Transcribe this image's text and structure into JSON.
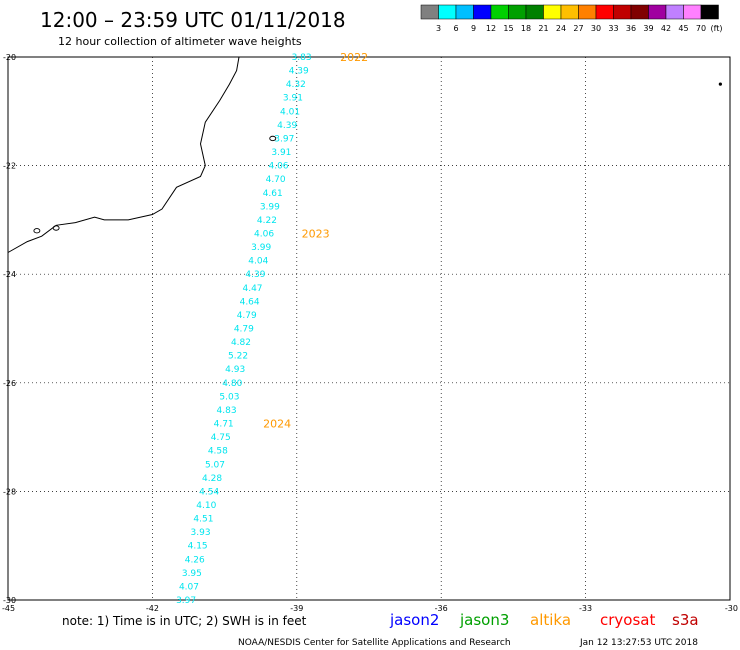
{
  "title": "12:00 – 23:59 UTC 01/11/2018",
  "subtitle": "12 hour collection of altimeter wave heights",
  "legend": {
    "colors": [
      "#808080",
      "#00ffff",
      "#00bfff",
      "#0000ff",
      "#00d000",
      "#00a000",
      "#008000",
      "#ffff00",
      "#ffbf00",
      "#ff8000",
      "#ff0000",
      "#c00000",
      "#800000",
      "#a000a0",
      "#c080ff",
      "#ff80ff",
      "#000000"
    ],
    "labels": [
      "3",
      "6",
      "9",
      "12",
      "15",
      "18",
      "21",
      "24",
      "27",
      "30",
      "33",
      "36",
      "39",
      "42",
      "45",
      "70",
      "(ft)"
    ]
  },
  "note": "note:  1) Time is in UTC;  2) SWH is in feet",
  "satellites": [
    {
      "name": "jason2",
      "color": "#0000ff"
    },
    {
      "name": "jason3",
      "color": "#00a000"
    },
    {
      "name": "altika",
      "color": "#ff9900"
    },
    {
      "name": "cryosat",
      "color": "#ff0000"
    },
    {
      "name": "s3a",
      "color": "#c00000"
    }
  ],
  "footer": {
    "left": "NOAA/NESDIS Center for Satellite Applications and Research",
    "right": "Jan 12 13:27:53 UTC 2018"
  },
  "chart_data": {
    "type": "scatter",
    "xlim": [
      -45,
      -30
    ],
    "ylim": [
      -30,
      -20
    ],
    "xticks": [
      -45,
      -42,
      -39,
      -36,
      -33,
      -30
    ],
    "yticks": [
      -20,
      -22,
      -24,
      -26,
      -28,
      -30
    ],
    "grid": true,
    "unit": "ft",
    "track_points": [
      {
        "lon": -38.9,
        "lat": -20.0,
        "value": "3.83"
      },
      {
        "lon": -38.96,
        "lat": -20.25,
        "value": "4.39"
      },
      {
        "lon": -39.02,
        "lat": -20.5,
        "value": "4.32"
      },
      {
        "lon": -39.08,
        "lat": -20.75,
        "value": "3.91"
      },
      {
        "lon": -39.14,
        "lat": -21.0,
        "value": "4.01"
      },
      {
        "lon": -39.2,
        "lat": -21.25,
        "value": "4.39"
      },
      {
        "lon": -39.26,
        "lat": -21.5,
        "value": "3.97"
      },
      {
        "lon": -39.32,
        "lat": -21.75,
        "value": "3.91"
      },
      {
        "lon": -39.38,
        "lat": -22.0,
        "value": "4.06"
      },
      {
        "lon": -39.44,
        "lat": -22.25,
        "value": "4.70"
      },
      {
        "lon": -39.5,
        "lat": -22.5,
        "value": "4.61"
      },
      {
        "lon": -39.56,
        "lat": -22.75,
        "value": "3.99"
      },
      {
        "lon": -39.62,
        "lat": -23.0,
        "value": "4.22"
      },
      {
        "lon": -39.68,
        "lat": -23.25,
        "value": "4.06"
      },
      {
        "lon": -39.74,
        "lat": -23.5,
        "value": "3.99"
      },
      {
        "lon": -39.8,
        "lat": -23.75,
        "value": "4.04"
      },
      {
        "lon": -39.86,
        "lat": -24.0,
        "value": "4.39"
      },
      {
        "lon": -39.92,
        "lat": -24.25,
        "value": "4.47"
      },
      {
        "lon": -39.98,
        "lat": -24.5,
        "value": "4.64"
      },
      {
        "lon": -40.04,
        "lat": -24.75,
        "value": "4.79"
      },
      {
        "lon": -40.1,
        "lat": -25.0,
        "value": "4.79"
      },
      {
        "lon": -40.16,
        "lat": -25.25,
        "value": "4.82"
      },
      {
        "lon": -40.22,
        "lat": -25.5,
        "value": "5.22"
      },
      {
        "lon": -40.28,
        "lat": -25.75,
        "value": "4.93"
      },
      {
        "lon": -40.34,
        "lat": -26.0,
        "value": "4.80"
      },
      {
        "lon": -40.4,
        "lat": -26.25,
        "value": "5.03"
      },
      {
        "lon": -40.46,
        "lat": -26.5,
        "value": "4.83"
      },
      {
        "lon": -40.52,
        "lat": -26.75,
        "value": "4.71"
      },
      {
        "lon": -40.58,
        "lat": -27.0,
        "value": "4.75"
      },
      {
        "lon": -40.64,
        "lat": -27.25,
        "value": "4.58"
      },
      {
        "lon": -40.7,
        "lat": -27.5,
        "value": "5.07"
      },
      {
        "lon": -40.76,
        "lat": -27.75,
        "value": "4.28"
      },
      {
        "lon": -40.82,
        "lat": -28.0,
        "value": "4.54"
      },
      {
        "lon": -40.88,
        "lat": -28.25,
        "value": "4.10"
      },
      {
        "lon": -40.94,
        "lat": -28.5,
        "value": "4.51"
      },
      {
        "lon": -41.0,
        "lat": -28.75,
        "value": "3.93"
      },
      {
        "lon": -41.06,
        "lat": -29.0,
        "value": "4.15"
      },
      {
        "lon": -41.12,
        "lat": -29.25,
        "value": "4.26"
      },
      {
        "lon": -41.18,
        "lat": -29.5,
        "value": "3.95"
      },
      {
        "lon": -41.24,
        "lat": -29.75,
        "value": "4.07"
      },
      {
        "lon": -41.3,
        "lat": -30.0,
        "value": "3.97"
      }
    ],
    "time_labels": [
      {
        "text": "2022",
        "lon": -38.1,
        "lat": -20.0
      },
      {
        "text": "2023",
        "lon": -38.9,
        "lat": -23.25
      },
      {
        "text": "2024",
        "lon": -39.7,
        "lat": -26.75
      }
    ],
    "coastline": [
      [
        -40.2,
        -20.0
      ],
      [
        -40.25,
        -20.25
      ],
      [
        -40.4,
        -20.5
      ],
      [
        -40.6,
        -20.8
      ],
      [
        -40.9,
        -21.2
      ],
      [
        -41.0,
        -21.6
      ],
      [
        -40.9,
        -22.0
      ],
      [
        -41.0,
        -22.2
      ],
      [
        -41.5,
        -22.4
      ],
      [
        -41.8,
        -22.8
      ],
      [
        -42.0,
        -22.9
      ],
      [
        -42.5,
        -23.0
      ],
      [
        -43.0,
        -23.0
      ],
      [
        -43.2,
        -22.95
      ],
      [
        -43.6,
        -23.05
      ],
      [
        -44.0,
        -23.1
      ],
      [
        -44.3,
        -23.3
      ],
      [
        -44.6,
        -23.4
      ],
      [
        -45.0,
        -23.6
      ]
    ],
    "islands": [
      [
        -39.5,
        -21.5
      ],
      [
        -44.4,
        -23.2
      ],
      [
        -44.0,
        -23.15
      ]
    ],
    "dot": {
      "lon": -30.2,
      "lat": -20.5
    }
  }
}
